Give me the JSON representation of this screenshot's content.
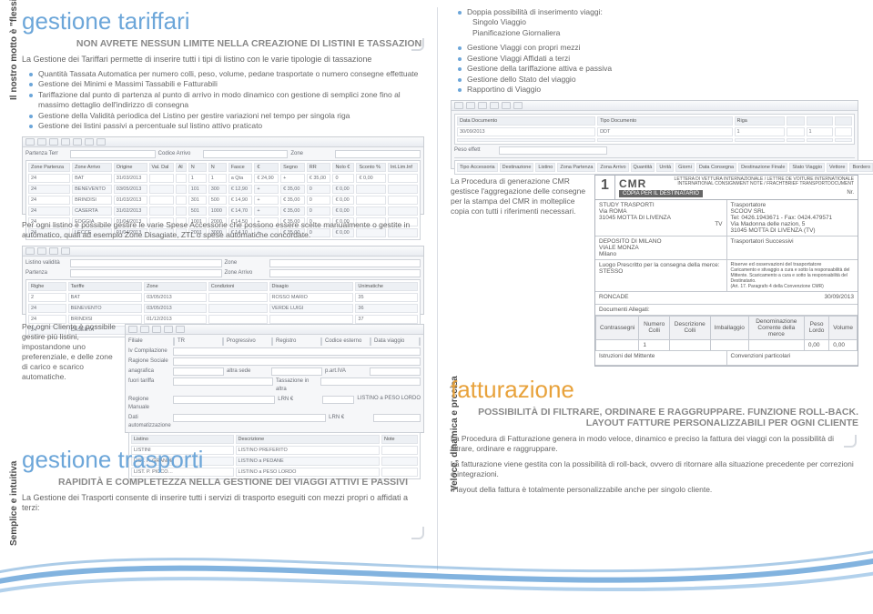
{
  "left": {
    "vtext_top": "Il nostro motto è \"flessibilità\"",
    "vtext_bottom": "Semplice e intuitiva",
    "section1_title": "gestione tariffari",
    "section1_subtitle": "NON AVRETE NESSUN LIMITE NELLA CREAZIONE DI LISTINI E TASSAZIONI",
    "section1_intro": "La Gestione dei Tariffari permette di inserire tutti i tipi di listino con le varie tipologie di tassazione",
    "section1_bullets": [
      "Quantità Tassata Automatica per numero colli, peso, volume, pedane trasportate o numero consegne effettuate",
      "Gestione dei Minimi e Massimi Tassabili e Fatturabili",
      "Tariffazione dal punto di partenza al punto di arrivo in modo dinamico con gestione di semplici zone fino al massimo dettaglio dell'indirizzo di consegna",
      "Gestione della Validità periodica del Listino per gestire variazioni nel tempo per singola riga",
      "Gestione dei listini passivi a percentuale sul listino attivo praticato"
    ],
    "grid1_cols": [
      "Zone Partenza",
      "Zone Arrivo",
      "Origine",
      "Val. Dal",
      "Al",
      "N",
      "N",
      "Fasce",
      "€",
      "Segno",
      "RR",
      "Nolo €",
      "Sconto %",
      "Int.Lim.Inf"
    ],
    "grid1_rows": [
      [
        "24",
        "BAT",
        "31/03/2013",
        "",
        "",
        "1",
        "1",
        "a Qta",
        "€ 24,90",
        "+",
        "€ 35,00",
        "0",
        "€ 0,00",
        ""
      ],
      [
        "24",
        "BENEVENTO",
        "03/05/2013",
        "",
        "",
        "101",
        "300",
        "€ 12,90",
        "+",
        "€ 35,00",
        "0",
        "€ 0,00",
        "",
        ""
      ],
      [
        "24",
        "BRINDISI",
        "01/03/2013",
        "",
        "",
        "301",
        "500",
        "€ 14,90",
        "+",
        "€ 35,00",
        "0",
        "€ 0,00",
        "",
        ""
      ],
      [
        "24",
        "CASERTA",
        "31/02/2013",
        "",
        "",
        "501",
        "1000",
        "€ 14,70",
        "+",
        "€ 35,00",
        "0",
        "€ 0,00",
        "",
        ""
      ],
      [
        "24",
        "FOGGIA",
        "01/04/2013",
        "",
        "",
        "1001",
        "2000",
        "€ 14,50",
        "+",
        "€ 35,00",
        "0",
        "€ 0,00",
        "",
        ""
      ],
      [
        "24",
        "LECCE",
        "01/04/2013",
        "",
        "",
        "2001",
        "3000",
        "€ 14,10",
        "+",
        "€ 35,00",
        "0",
        "€ 0,00",
        "",
        ""
      ],
      [
        "24",
        "NAPOLI",
        "31/02/2013",
        "",
        "",
        "3001",
        "5000",
        "€ 12,90",
        "+",
        "€ 35,00",
        "0",
        "€ 0,00",
        "",
        ""
      ],
      [
        "24",
        "SALERNO",
        "01/08/2013",
        "",
        "",
        "5001",
        "10000",
        "€ 12,10",
        "+",
        "€ 35,00",
        "0",
        "€ 0,00",
        "",
        ""
      ]
    ],
    "caption1": "Per ogni listino è possibile gestire le varie Spese Accessorie che possono essere scelte manualmente o gestite in automatico, quali ad esempio Zone Disagiate, ZTL o spese automatiche concordate.",
    "caption2a": "Per ogni Cliente è possibile gestire più listini, impostandone uno preferenziale, e delle zone di carico e scarico automatiche.",
    "section2_title": "gestione trasporti",
    "section2_subtitle": "RAPIDITÀ E COMPLETEZZA NELLA GESTIONE DEI VIAGGI ATTIVI E PASSIVI",
    "section2_intro": "La Gestione dei Trasporti consente di inserire tutti i servizi di trasporto eseguiti con mezzi propri o affidati a terzi:",
    "grid3_listini": [
      [
        "LISTINI",
        "LISTINO PREFERITO"
      ],
      [
        "LIST. P. GRANDE",
        "LISTINO a PEDANE"
      ],
      [
        "LIST. P. PICCO…",
        "LISTINO a PESO LORDO"
      ]
    ],
    "form_labels": {
      "filiale": "Filiale",
      "tr": "TR",
      "date": "Progressivo",
      "registro": "Registro",
      "codice_esterno": "Codice esterno",
      "data_viaggio": "Data viaggio",
      "tit_compl": "Iv Compilazione",
      "mario_rossi": "MARIO ROSSI",
      "regione_sociale": "Ragione Sociale",
      "anagrafica": "anagrafica",
      "altra_sede": "altra sede",
      "paiva": "p.art.IVA",
      "fuori_tariffa": "fuori tariffa",
      "tasso": "Tassazione in altra",
      "regime": "Regione Manuale",
      "listino_std": "LISTINO a PESO LORDO",
      "dati_autom": "Dati automatizzazione",
      "peso": "LRN €"
    }
  },
  "right": {
    "vtext": "Veloce, dinamica e precisa",
    "top_bullets_header": "Doppia possibilità di inserimento viaggi:",
    "top_bullets_sub": [
      "Singolo Viaggio",
      "Pianificazione Giornaliera"
    ],
    "top_bullets": [
      "Gestione Viaggi con propri mezzi",
      "Gestione Viaggi Affidati a terzi",
      "Gestione della tariffazione attiva e passiva",
      "Gestione dello Stato del viaggio",
      "Rapportino di Viaggio"
    ],
    "grid_right_cols": [
      "Data Documento",
      "Tipo Documento",
      "Riga",
      "",
      "",
      ""
    ],
    "grid_right_rows": [
      [
        "30/09/2013",
        "DDT",
        "1",
        "",
        "1",
        ""
      ],
      [
        "",
        "",
        "",
        "",
        "",
        ""
      ]
    ],
    "grid_right_bcols": [
      "Tipo Accessoria",
      "Destinazione",
      "Listino",
      "Zona Partenza",
      "Zona Arrivo",
      "Quantità",
      "Unità",
      "Giorni",
      "Data Consegna",
      "Destinazione Finale",
      "Stato Viaggio",
      "Vettore",
      "Bordero",
      "Consolidamenti"
    ],
    "cmr_intro": "La Procedura di generazione CMR gestisce l'aggregazione delle consegne per la stampa del CMR in molteplice copia con tutti i riferimenti necessari.",
    "cmr": {
      "big": "CMR",
      "suphead": "LETTERA DI VETTURA INTERNAZIONALE / LETTRE DE VOITURE INTERNATIONALE",
      "suphead2": "INTERNATIONAL CONSIGNMENT NOTE / FRACHTBRIEF TRANSPORTDOCUMENT",
      "copia": "COPIA PER IL DESTINATARIO",
      "nr": "Nr.",
      "mittente": "STUDY TRASPORTI\nVia ROMA\n31045 MOTTA DI LIVENZA",
      "mittente_right": "TV",
      "trasportatore": "Trasportatore\nSCOOV SRL\nTel: 0426.1943671 - Fax: 0424.479571\nVia Madonna delle nazion, 5\n31045 MOTTA DI LIVENZA (TV)",
      "trasp_succ": "Trasportatori Successivi",
      "destinatario": "DEPOSITO DI MILANO\nVIALE MONZA\n         Milano",
      "luogo_merce": "Luogo Prescritto per la consegna della merce:\nSTESSO",
      "riserve": "Riserve ed osservazioni del trasportatore",
      "riserve_txt": "Caricamento e stivaggio a cura e sotto la responsabilità del Mittente. Scaricamento a cura e sotto la responsabilità del Destinatario.\n(Art. 17. Paragrafo 4 della Convenzione CMR)",
      "luogo_data": "Luogo e data della presa di carico della merce:",
      "roncade": "RONCADE",
      "data": "30/09/2013",
      "doc_all": "Documenti Allegati:",
      "tcols": [
        "Contrassegni",
        "Numero Colli",
        "Descrizione Colli",
        "Imballaggio",
        "Denominazione Corrente della merce",
        "Peso Lordo",
        "Volume"
      ],
      "trow": [
        "",
        "1",
        "",
        "",
        "",
        "0,00",
        "0,00"
      ],
      "istruzioni": "Istruzioni del Mittente",
      "convenzioni": "Convenzioni particolari"
    },
    "section_title": "fatturazione",
    "subtitle1": "POSSIBILITÀ DI FILTRARE, ORDINARE E RAGGRUPPARE. FUNZIONE ROLL-BACK.",
    "subtitle2": "LAYOUT FATTURE PERSONALIZZABILI PER OGNI CLIENTE",
    "para1": "La Procedura di Fatturazione genera in modo veloce, dinamico e preciso la fattura dei viaggi con la possibilità di filtrare, ordinare e raggruppare.",
    "para2": "La fatturazione viene gestita con la possibilità di roll-back, ovvero di ritornare alla situazione precedente per correzioni o integrazioni.",
    "para3": "Il layout della fattura è totalmente personalizzabile anche per singolo cliente."
  },
  "colors": {
    "blue": "#6ca6d9",
    "orange": "#e8a23b",
    "grey": "#666666"
  }
}
